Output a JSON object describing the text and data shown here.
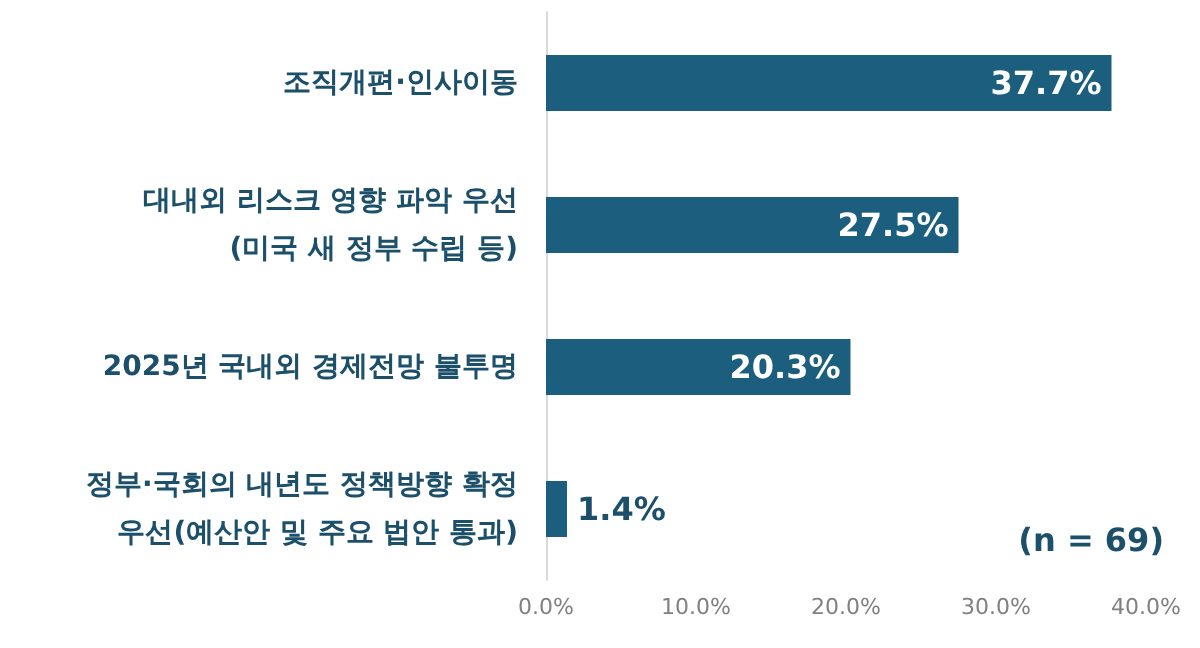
{
  "chart_data": {
    "type": "bar",
    "orientation": "horizontal",
    "categories": [
      "조직개편·인사이동",
      "대내외 리스크 영향 파악 우선\n(미국 새 정부 수립 등)",
      "2025년 국내외 경제전망 불투명",
      "정부·국회의 내년도 정책방향 확정\n우선(예산안 및 주요 법안 통과)"
    ],
    "values": [
      37.7,
      27.5,
      20.3,
      1.4
    ],
    "value_labels": [
      "37.7%",
      "27.5%",
      "20.3%",
      "1.4%"
    ],
    "color": "#1b5e7e",
    "xlim": [
      0,
      40
    ],
    "xticks": [
      {
        "value": 0,
        "label": "0.0%"
      },
      {
        "value": 10,
        "label": "10.0%"
      },
      {
        "value": 20,
        "label": "20.0%"
      },
      {
        "value": 30,
        "label": "30.0%"
      },
      {
        "value": 40,
        "label": "40.0%"
      }
    ],
    "grid": false,
    "annotations": [
      "(n = 69)"
    ]
  }
}
